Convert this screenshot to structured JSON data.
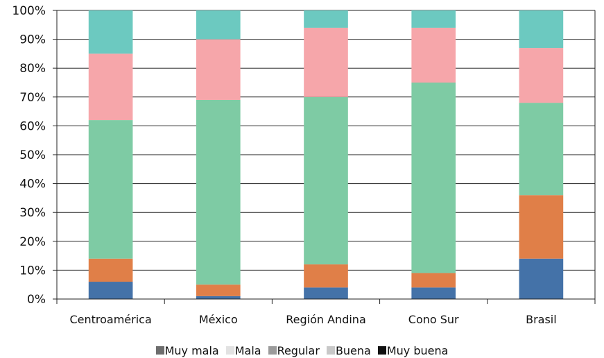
{
  "chart_data": {
    "type": "bar",
    "stacked": true,
    "percent_scale": true,
    "categories": [
      "Centroamérica",
      "México",
      "Región Andina",
      "Cono Sur",
      "Brasil"
    ],
    "series": [
      {
        "name": "Muy mala",
        "legend_color": "#6d6d6d",
        "color": "#4472a8",
        "values": [
          6,
          1,
          4,
          4,
          14
        ]
      },
      {
        "name": "Mala",
        "legend_color": "#e2e2e2",
        "color": "#e07f48",
        "values": [
          8,
          4,
          8,
          5,
          22
        ]
      },
      {
        "name": "Regular",
        "legend_color": "#9b9b9b",
        "color": "#7ecba4",
        "values": [
          48,
          64,
          58,
          66,
          32
        ]
      },
      {
        "name": "Buena",
        "legend_color": "#c8c8c8",
        "color": "#f6a6aa",
        "values": [
          23,
          21,
          24,
          19,
          19
        ]
      },
      {
        "name": "Muy buena",
        "legend_color": "#111111",
        "color": "#6cc9c0",
        "values": [
          15,
          10,
          6,
          6,
          13
        ]
      }
    ],
    "y_ticks": [
      "0%",
      "10%",
      "20%",
      "30%",
      "40%",
      "50%",
      "60%",
      "70%",
      "80%",
      "90%",
      "100%"
    ],
    "ylim": [
      0,
      100
    ],
    "grid": true,
    "legend_position": "bottom"
  }
}
